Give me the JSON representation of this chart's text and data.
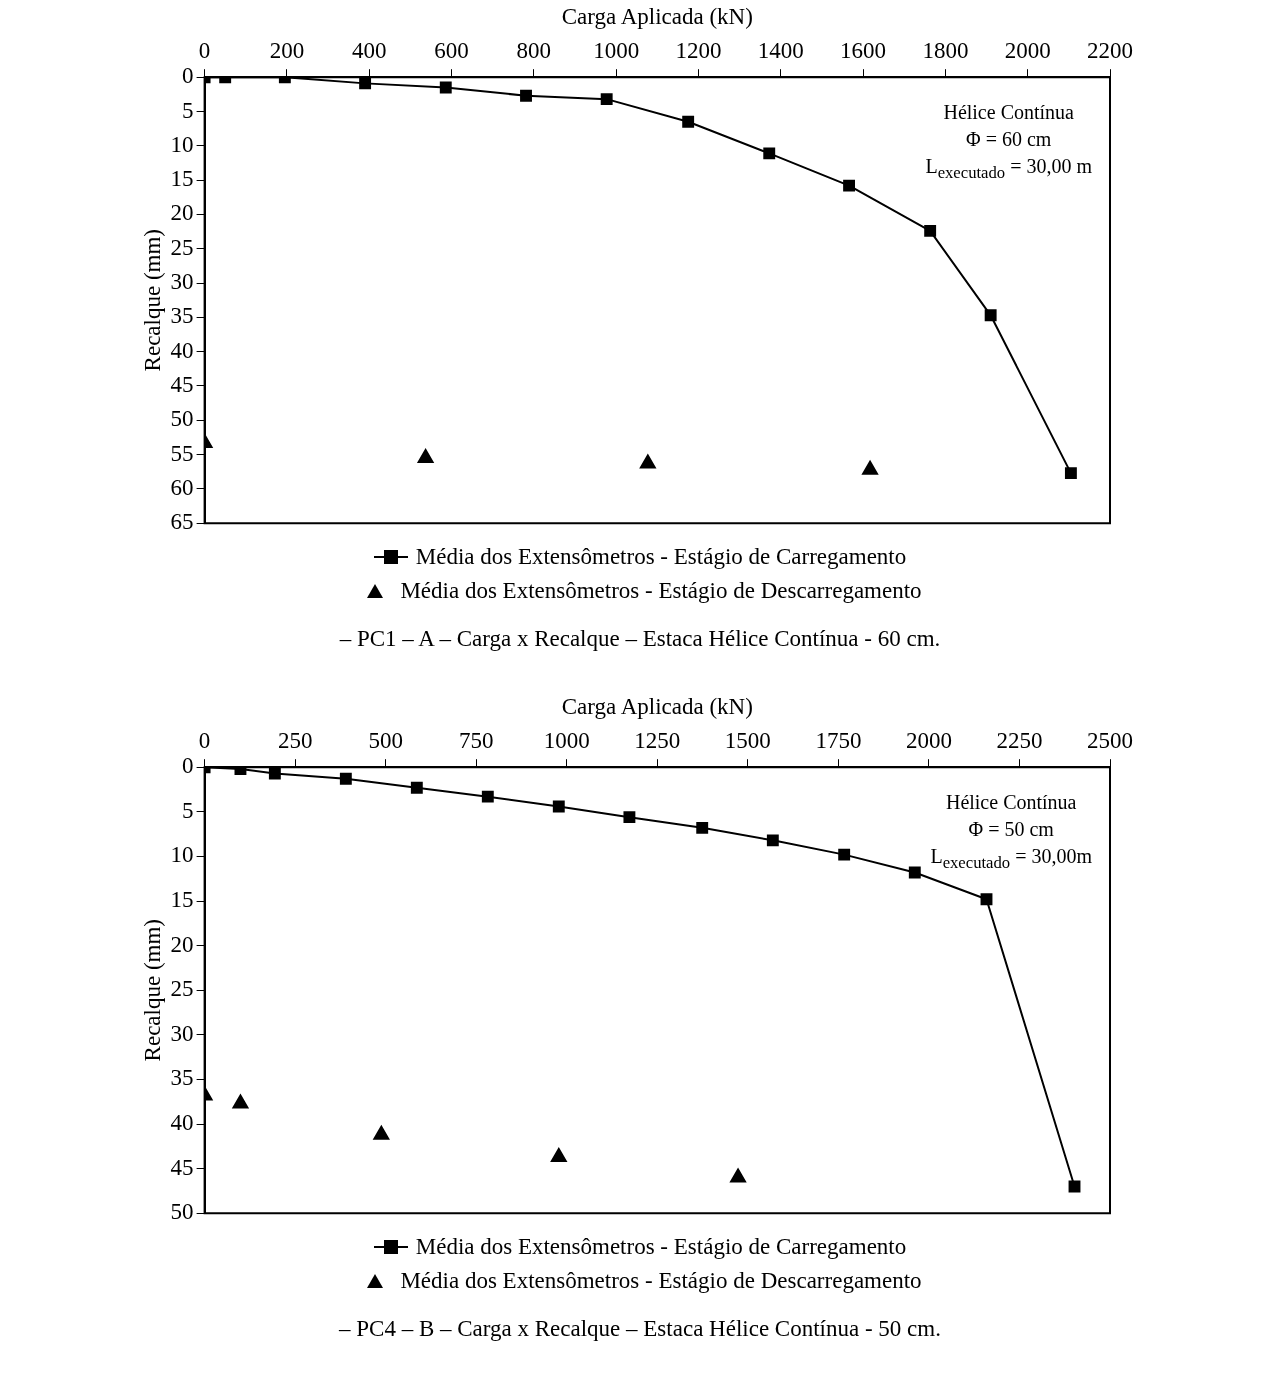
{
  "chart_data": [
    {
      "type": "line",
      "xlabel": "Carga Aplicada (kN)",
      "ylabel": "Recalque (mm)",
      "xlim": [
        0,
        2200
      ],
      "xticks": [
        0,
        200,
        400,
        600,
        800,
        1000,
        1200,
        1400,
        1600,
        1800,
        2000,
        2200
      ],
      "ylim": [
        65,
        0
      ],
      "yticks": [
        0,
        5,
        10,
        15,
        20,
        25,
        30,
        35,
        40,
        45,
        50,
        55,
        60,
        65
      ],
      "grid": false,
      "legend": "bottom",
      "annotations": [
        "Hélice Contínua",
        "Φ = 60 cm",
        "L$_{executado}$  = 30,00 m",
        "– PC1 – A – Carga x Recalque – Estaca Hélice Contínua - 60 cm."
      ],
      "series": [
        {
          "name": "Média dos Extensômetros - Estágio de Carregamento",
          "type": "line",
          "marker": "square",
          "color": "#000000",
          "x": [
            0,
            50,
            195,
            390,
            586,
            781,
            977,
            1175,
            1372,
            1566,
            1763,
            1910,
            2105
          ],
          "values": [
            0,
            0,
            0,
            0.9,
            1.5,
            2.7,
            3.2,
            6.5,
            11.1,
            15.8,
            22.4,
            34.7,
            57.7
          ]
        },
        {
          "name": "Média dos Extensômetros - Estágio de Descarregamento",
          "type": "scatter",
          "marker": "triangle",
          "color": "#000000",
          "x": [
            0,
            537,
            1077,
            1617
          ],
          "values": [
            53.3,
            55.5,
            56.3,
            57.2
          ]
        }
      ]
    },
    {
      "type": "line",
      "xlabel": "Carga Aplicada (kN)",
      "ylabel": "Recalque (mm)",
      "xlim": [
        0,
        2500
      ],
      "xticks": [
        0,
        250,
        500,
        750,
        1000,
        1250,
        1500,
        1750,
        2000,
        2250,
        2500
      ],
      "ylim": [
        50,
        0
      ],
      "yticks": [
        0,
        5,
        10,
        15,
        20,
        25,
        30,
        35,
        40,
        45,
        50
      ],
      "grid": false,
      "legend": "bottom",
      "annotations": [
        "Hélice Contínua",
        "Φ = 50 cm",
        "L$_{executado}$  = 30,00m",
        "– PC4 – B – Carga x Recalque – Estaca Hélice Contínua - 50 cm."
      ],
      "series": [
        {
          "name": "Média dos Extensômetros - Estágio de Carregamento",
          "type": "line",
          "marker": "square",
          "color": "#000000",
          "x": [
            0,
            99,
            194,
            390,
            586,
            782,
            978,
            1173,
            1374,
            1569,
            1766,
            1961,
            2159,
            2402
          ],
          "values": [
            0,
            0.2,
            0.7,
            1.3,
            2.3,
            3.3,
            4.4,
            5.6,
            6.8,
            8.2,
            9.8,
            11.8,
            14.8,
            47.0
          ]
        },
        {
          "name": "Média dos Extensômetros - Estágio de Descarregamento",
          "type": "scatter",
          "marker": "triangle",
          "color": "#000000",
          "x": [
            0,
            99,
            488,
            978,
            1473
          ],
          "values": [
            36.8,
            37.7,
            41.2,
            43.7,
            46.0
          ]
        }
      ]
    }
  ]
}
